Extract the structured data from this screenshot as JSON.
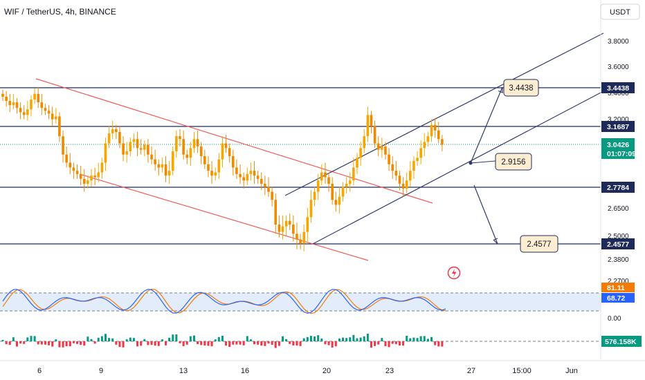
{
  "header": {
    "title": "WIF / TetherUS, 4h, BINANCE",
    "currency_button": "USDT"
  },
  "colors": {
    "up": "#089981",
    "down": "#f23645",
    "candle_up": "#f7a600",
    "candle_down": "#f7a600",
    "level": "#1e2a5c",
    "trend_red": "#f45b5b",
    "trend_blue": "#2f3a6b",
    "stoch_k": "#2962ff",
    "stoch_d": "#f57c00",
    "stoch_band": "#e3ecfb",
    "price_line": "#089981",
    "callout_fill": "#fdeed2",
    "callout_border": "#1e2a5c"
  },
  "chart_data": {
    "type": "candlestick",
    "symbol": "WIF / TetherUS",
    "interval": "4h",
    "exchange": "BINANCE",
    "y_ticks": [
      "3.8000",
      "3.6000",
      "3.4000",
      "3.2000",
      "2.6500",
      "2.5000",
      "2.3800",
      "2.2700",
      "0.00"
    ],
    "x_ticks": [
      "6",
      "9",
      "13",
      "16",
      "20",
      "23",
      "27",
      "15:00",
      "Jun"
    ],
    "levels": [
      {
        "price": "3.4438",
        "label": "3.4438"
      },
      {
        "price": "3.1687",
        "label": "3.1687"
      },
      {
        "price": "2.7784",
        "label": "2.7784"
      },
      {
        "price": "2.4577",
        "label": "2.4577"
      }
    ],
    "last_price": {
      "value": "3.0426",
      "countdown": "01:07:09"
    },
    "callouts": [
      "3.4438",
      "2.9156",
      "2.4577"
    ],
    "stoch_rsi": {
      "k": "81.11",
      "d": "68.72",
      "bands": [
        80,
        20
      ]
    },
    "volume": {
      "last": "576.158K"
    },
    "closes": [
      3.38,
      3.35,
      3.32,
      3.34,
      3.3,
      3.27,
      3.25,
      3.29,
      3.36,
      3.4,
      3.34,
      3.3,
      3.28,
      3.26,
      3.22,
      3.24,
      3.1,
      2.98,
      2.93,
      2.9,
      2.88,
      2.86,
      2.83,
      2.8,
      2.82,
      2.85,
      2.84,
      2.87,
      2.93,
      3.05,
      3.12,
      3.15,
      3.13,
      3.05,
      2.98,
      3.0,
      3.06,
      3.08,
      3.02,
      3.01,
      3.04,
      2.98,
      2.95,
      2.92,
      2.9,
      2.92,
      2.85,
      2.88,
      3.0,
      3.1,
      3.08,
      2.98,
      2.96,
      3.02,
      3.08,
      3.03,
      2.97,
      2.92,
      2.88,
      2.85,
      2.87,
      2.95,
      3.05,
      3.02,
      2.97,
      2.9,
      2.86,
      2.84,
      2.82,
      2.86,
      2.88,
      2.85,
      2.83,
      2.8,
      2.78,
      2.75,
      2.7,
      2.56,
      2.52,
      2.55,
      2.58,
      2.56,
      2.51,
      2.48,
      2.46,
      2.52,
      2.6,
      2.7,
      2.75,
      2.82,
      2.87,
      2.84,
      2.8,
      2.7,
      2.67,
      2.72,
      2.78,
      2.8,
      2.82,
      2.9,
      2.96,
      3.02,
      3.1,
      3.25,
      3.17,
      3.05,
      3.01,
      3.03,
      2.98,
      2.92,
      2.88,
      2.85,
      2.8,
      2.77,
      2.82,
      2.88,
      2.94,
      2.96,
      3.02,
      3.06,
      3.1,
      3.18,
      3.14,
      3.08,
      3.04
    ]
  }
}
